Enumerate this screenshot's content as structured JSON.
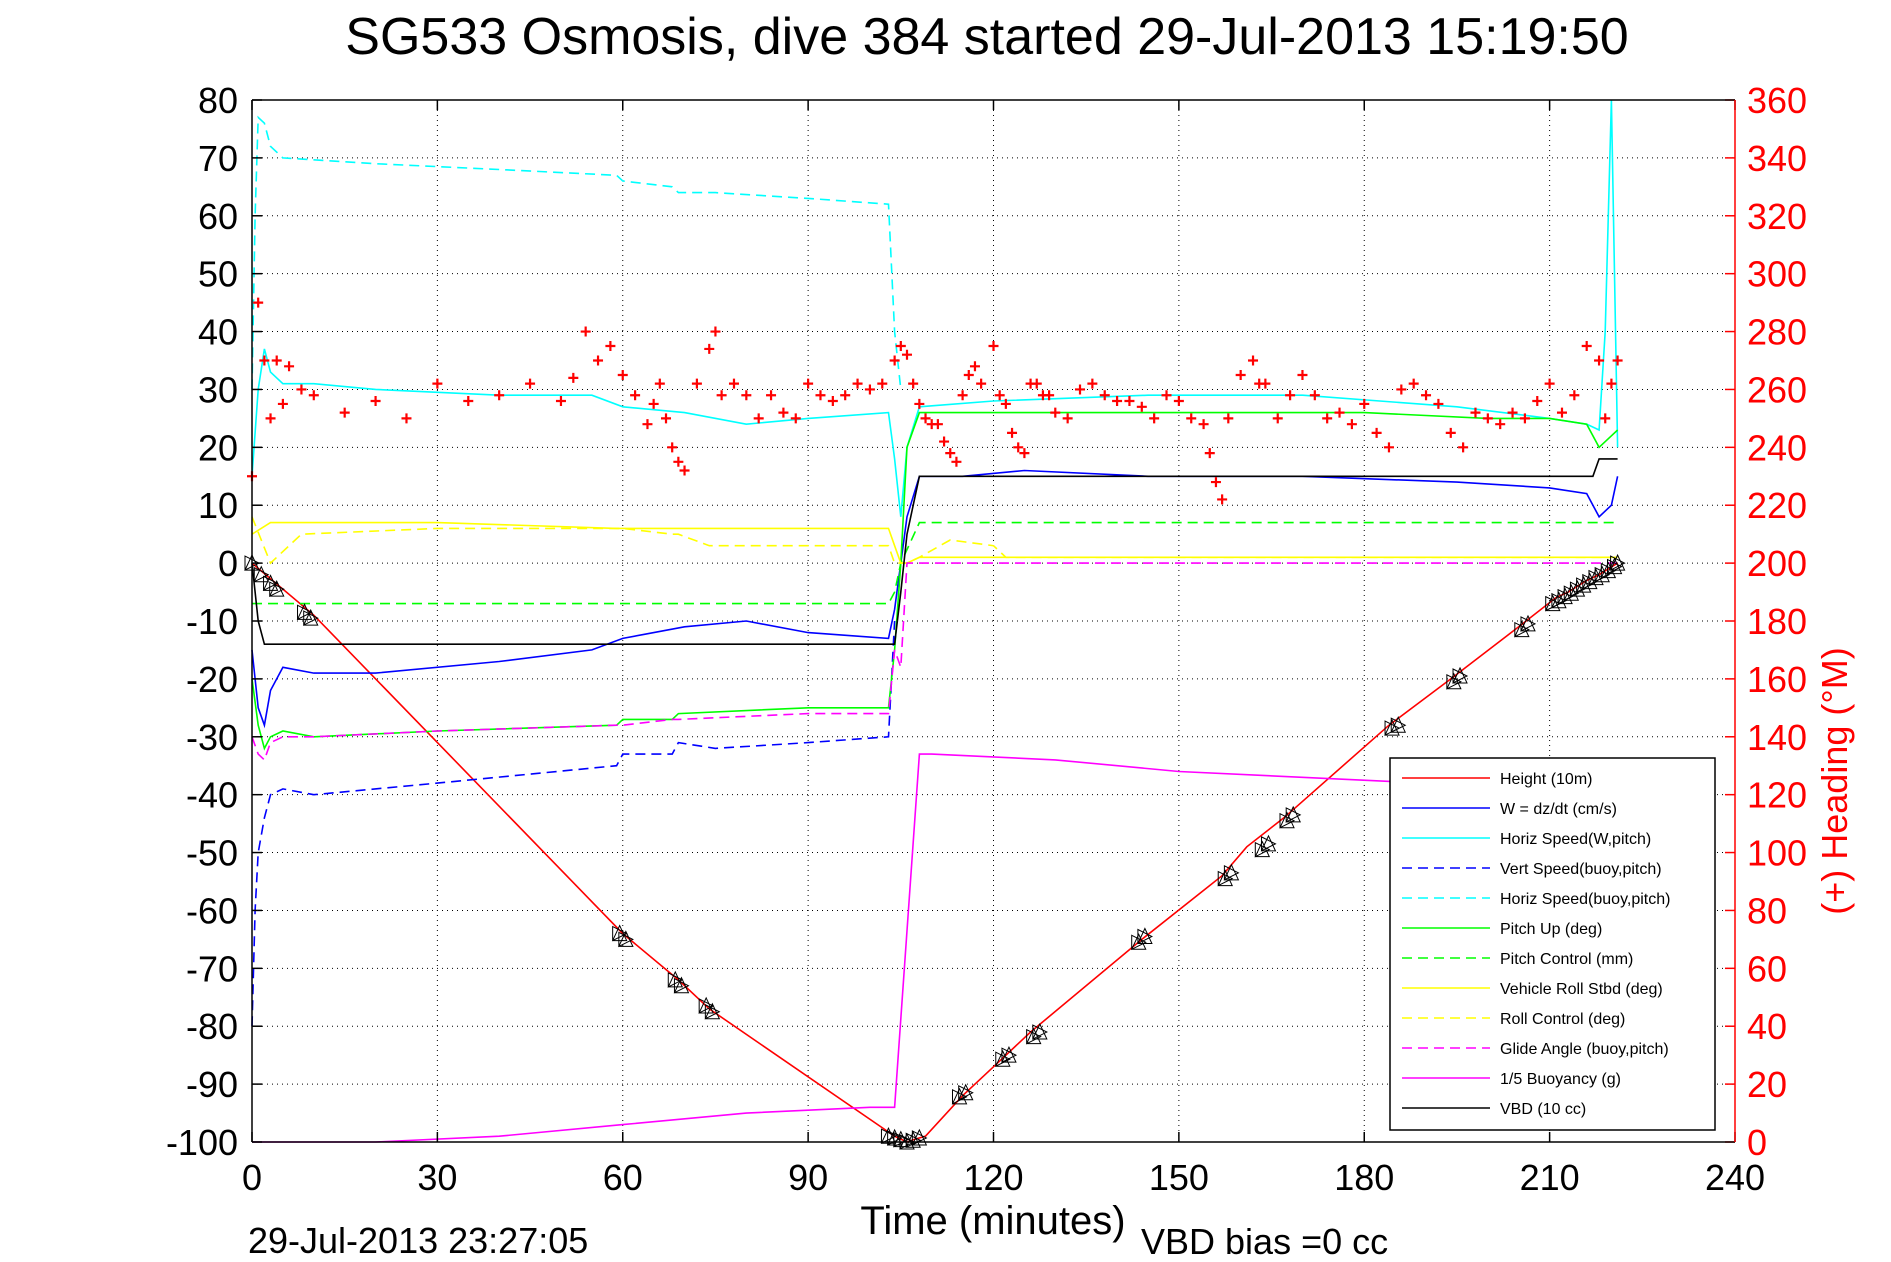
{
  "chart_data": {
    "type": "line",
    "title": "SG533 Osmosis, dive 384 started 29-Jul-2013 15:19:50",
    "xlabel": "Time (minutes)",
    "ylabel": "",
    "y2label": "(+) Heading (°M)",
    "xlim": [
      0,
      240
    ],
    "ylim": [
      -100,
      80
    ],
    "y2lim": [
      0,
      360
    ],
    "xticks": [
      "0",
      "30",
      "60",
      "90",
      "120",
      "150",
      "180",
      "210",
      "240"
    ],
    "yticks": [
      "80",
      "70",
      "60",
      "50",
      "40",
      "30",
      "20",
      "10",
      "0",
      "-10",
      "-20",
      "-30",
      "-40",
      "-50",
      "-60",
      "-70",
      "-80",
      "-90",
      "-100"
    ],
    "y2ticks": [
      "360",
      "340",
      "320",
      "300",
      "280",
      "260",
      "240",
      "220",
      "200",
      "180",
      "160",
      "140",
      "120",
      "100",
      "80",
      "60",
      "40",
      "20",
      "0"
    ],
    "grid": true,
    "legend_position": "bottom-right",
    "footer_left": "29-Jul-2013 23:27:05",
    "footer_right": "VBD bias =0 cc",
    "colors": {
      "red": "#ff0000",
      "blue": "#0000ff",
      "cyan": "#00ffff",
      "green": "#00ff00",
      "yellow": "#ffff00",
      "magenta": "#ff00ff",
      "black": "#000000"
    },
    "series": [
      {
        "name": "Height (10m)",
        "color": "#ff0000",
        "style": "solid",
        "x": [
          0,
          10,
          60,
          69,
          74,
          104,
          105,
          106,
          107,
          109,
          115,
          122,
          126,
          144,
          157,
          161,
          167,
          184,
          194,
          205,
          211,
          213,
          216,
          218,
          221
        ],
        "y": [
          0,
          -9,
          -64,
          -72,
          -77,
          -99,
          -99.5,
          -100,
          -99.6,
          -99,
          -92,
          -85,
          -81,
          -65,
          -54,
          -49,
          -44,
          -28,
          -20,
          -11,
          -6,
          -5,
          -3,
          -2,
          0
        ]
      },
      {
        "name": "W = dz/dt (cm/s)",
        "color": "#0000ff",
        "style": "solid",
        "x": [
          0,
          1,
          2,
          3,
          5,
          10,
          20,
          40,
          55,
          60,
          70,
          80,
          90,
          103,
          104,
          105,
          106,
          108,
          115,
          125,
          145,
          170,
          195,
          210,
          216,
          218,
          220,
          221
        ],
        "y": [
          -15,
          -25,
          -28,
          -22,
          -18,
          -19,
          -19,
          -17,
          -15,
          -13,
          -11,
          -10,
          -12,
          -13,
          -8,
          0,
          8,
          15,
          15,
          16,
          15,
          15,
          14,
          13,
          12,
          8,
          10,
          15
        ]
      },
      {
        "name": "Horiz Speed(W,pitch)",
        "color": "#00ffff",
        "style": "solid",
        "x": [
          0,
          1,
          2,
          3,
          5,
          10,
          20,
          40,
          55,
          60,
          70,
          80,
          90,
          103,
          104,
          105,
          106,
          108,
          120,
          145,
          170,
          195,
          210,
          216,
          218,
          219,
          220,
          221
        ],
        "y": [
          15,
          30,
          37,
          33,
          31,
          31,
          30,
          29,
          29,
          27,
          26,
          24,
          25,
          26,
          18,
          8,
          20,
          27,
          28,
          29,
          29,
          27,
          25,
          24,
          23,
          40,
          80,
          20
        ]
      },
      {
        "name": "Vert Speed(buoy,pitch)",
        "color": "#0000ff",
        "style": "dashed",
        "x": [
          0,
          0.5,
          1,
          2,
          3,
          5,
          10,
          30,
          59,
          60,
          68,
          69,
          75,
          90,
          103,
          104
        ],
        "y": [
          -80,
          -60,
          -50,
          -44,
          -40,
          -39,
          -40,
          -38,
          -35,
          -33,
          -33,
          -31,
          -32,
          -31,
          -30,
          -10
        ]
      },
      {
        "name": "Horiz Speed(buoy,pitch)",
        "color": "#00ffff",
        "style": "dashed",
        "x": [
          0,
          0.5,
          1,
          2,
          3,
          5,
          20,
          40,
          59,
          60,
          68,
          69,
          75,
          90,
          103,
          104,
          105
        ],
        "y": [
          30,
          60,
          77,
          76,
          72,
          70,
          69,
          68,
          67,
          66,
          65,
          64,
          64,
          63,
          62,
          40,
          30
        ]
      },
      {
        "name": "Pitch Up (deg)",
        "color": "#00ff00",
        "style": "solid",
        "x": [
          0,
          1,
          2,
          3,
          5,
          10,
          30,
          59,
          60,
          68,
          69,
          90,
          103,
          104,
          105,
          106,
          108,
          125,
          150,
          180,
          200,
          210,
          216,
          218,
          220,
          221
        ],
        "y": [
          -20,
          -28,
          -32,
          -30,
          -29,
          -30,
          -29,
          -28,
          -27,
          -27,
          -26,
          -25,
          -25,
          -15,
          0,
          20,
          26,
          26,
          26,
          26,
          25,
          25,
          24,
          20,
          22,
          23
        ]
      },
      {
        "name": "Pitch Control (mm)",
        "color": "#00ff00",
        "style": "dashed",
        "x": [
          0,
          3,
          59,
          60,
          103,
          104,
          105,
          108,
          122,
          123,
          221
        ],
        "y": [
          -7,
          -7,
          -7,
          -7,
          -7,
          -5,
          0,
          7,
          7,
          7,
          7
        ]
      },
      {
        "name": "Vehicle Roll Stbd (deg)",
        "color": "#ffff00",
        "style": "solid",
        "x": [
          0,
          3,
          5,
          10,
          30,
          59,
          60,
          68,
          69,
          90,
          103,
          104,
          105,
          106,
          108,
          120,
          150,
          180,
          210,
          220
        ],
        "y": [
          5,
          7,
          7,
          7,
          7,
          6,
          6,
          6,
          6,
          6,
          6,
          3,
          0,
          0,
          1,
          1,
          1,
          1,
          1,
          1
        ]
      },
      {
        "name": "Roll Control (deg)",
        "color": "#ffff00",
        "style": "dashed",
        "x": [
          0,
          3,
          8,
          30,
          59,
          60,
          68,
          69,
          74,
          75,
          103,
          104,
          106,
          108,
          113,
          120,
          122,
          150,
          180,
          210,
          221
        ],
        "y": [
          8,
          0,
          5,
          6,
          6,
          6,
          5,
          5,
          3,
          3,
          3,
          0,
          0,
          1,
          4,
          3,
          1,
          1,
          1,
          1,
          1
        ]
      },
      {
        "name": "Glide Angle (buoy,pitch)",
        "color": "#ff00ff",
        "style": "dashed",
        "x": [
          0,
          1,
          2,
          3,
          5,
          10,
          30,
          59,
          60,
          68,
          69,
          90,
          103,
          104,
          105,
          106,
          108,
          221
        ],
        "y": [
          -30,
          -33,
          -34,
          -31,
          -30,
          -30,
          -29,
          -28,
          -28,
          -27,
          -27,
          -26,
          -26,
          -15,
          -18,
          0,
          0,
          0
        ]
      },
      {
        "name": "1/5 Buoyancy (g)",
        "color": "#ff00ff",
        "style": "solid",
        "x": [
          0,
          1,
          2,
          3,
          5,
          20,
          40,
          60,
          80,
          100,
          104,
          108,
          110,
          130,
          150,
          190,
          210,
          220
        ],
        "y": [
          -100,
          -100,
          -100,
          -100,
          -100,
          -100,
          -99,
          -97,
          -95,
          -94,
          -94,
          -33,
          -33,
          -34,
          -36,
          -38,
          -38,
          -38
        ]
      },
      {
        "name": "VBD (10 cc)",
        "color": "#000000",
        "style": "solid",
        "x": [
          0,
          1,
          2,
          104,
          105,
          106,
          108,
          150,
          217,
          218,
          221
        ],
        "y": [
          0,
          -10,
          -14,
          -14,
          -5,
          5,
          15,
          15,
          15,
          18,
          18
        ]
      }
    ],
    "heading": {
      "name": "(+) Heading (°M)",
      "color": "#ff0000",
      "marker": "+",
      "x": [
        0,
        1,
        2,
        3,
        4,
        5,
        6,
        8,
        10,
        15,
        20,
        25,
        30,
        35,
        40,
        45,
        50,
        52,
        54,
        56,
        58,
        60,
        62,
        64,
        65,
        66,
        67,
        68,
        69,
        70,
        72,
        74,
        75,
        76,
        78,
        80,
        82,
        84,
        86,
        88,
        90,
        92,
        94,
        96,
        98,
        100,
        102,
        104,
        105,
        106,
        107,
        108,
        109,
        110,
        111,
        112,
        113,
        114,
        115,
        116,
        117,
        118,
        120,
        121,
        122,
        123,
        124,
        125,
        126,
        127,
        128,
        129,
        130,
        132,
        134,
        136,
        138,
        140,
        142,
        144,
        146,
        148,
        150,
        152,
        154,
        155,
        156,
        157,
        158,
        160,
        162,
        163,
        164,
        166,
        168,
        170,
        172,
        174,
        176,
        178,
        180,
        182,
        184,
        186,
        188,
        190,
        192,
        194,
        196,
        198,
        200,
        202,
        204,
        206,
        208,
        210,
        212,
        214,
        216,
        218,
        219,
        220,
        221
      ],
      "y": [
        230,
        290,
        270,
        250,
        270,
        255,
        268,
        260,
        258,
        252,
        256,
        250,
        262,
        256,
        258,
        262,
        256,
        264,
        280,
        270,
        275,
        265,
        258,
        248,
        255,
        262,
        250,
        240,
        235,
        232,
        262,
        274,
        280,
        258,
        262,
        258,
        250,
        258,
        252,
        250,
        262,
        258,
        256,
        258,
        262,
        260,
        262,
        270,
        275,
        272,
        262,
        255,
        250,
        248,
        248,
        242,
        238,
        235,
        258,
        265,
        268,
        262,
        275,
        258,
        255,
        245,
        240,
        238,
        262,
        262,
        258,
        258,
        252,
        250,
        260,
        262,
        258,
        256,
        256,
        254,
        250,
        258,
        256,
        250,
        248,
        238,
        228,
        222,
        250,
        265,
        270,
        262,
        262,
        250,
        258,
        265,
        258,
        250,
        252,
        248,
        255,
        245,
        240,
        260,
        262,
        258,
        255,
        245,
        240,
        252,
        250,
        248,
        252,
        250,
        256,
        262,
        252,
        258,
        275,
        270,
        250,
        262,
        270
      ]
    },
    "markers": {
      "symbol": "triangles",
      "color": "#000000",
      "x": [
        0,
        1.5,
        3,
        4,
        8.5,
        9.5,
        59.5,
        60.5,
        68.5,
        69.5,
        73.5,
        74.5,
        103,
        104,
        105,
        106,
        107,
        108,
        114.5,
        115.5,
        121.5,
        122.5,
        126.5,
        127.5,
        143.5,
        144.5,
        157.5,
        158.5,
        163.5,
        164.5,
        167.5,
        168.5,
        184.5,
        185.5,
        194.5,
        195.5,
        205.5,
        206.5,
        210.5,
        211.5,
        212.5,
        213.5,
        214.5,
        215.5,
        216.5,
        217.5,
        218.5,
        219.5,
        220.5,
        221
      ],
      "y": [
        0,
        -2,
        -3.5,
        -4.5,
        -8.5,
        -9.5,
        -64,
        -65,
        -72,
        -73,
        -76.5,
        -77.5,
        -99,
        -99.3,
        -99.6,
        -100,
        -99.7,
        -99.3,
        -92.2,
        -91.5,
        -85.7,
        -85,
        -81.8,
        -81,
        -65.5,
        -64.5,
        -54.5,
        -53.5,
        -49.5,
        -48.5,
        -44.5,
        -43.5,
        -28.5,
        -28,
        -20.5,
        -19.5,
        -11.5,
        -10.5,
        -7,
        -6.5,
        -5.8,
        -5.2,
        -4.5,
        -3.8,
        -3.2,
        -2.5,
        -2,
        -1.3,
        -0.6,
        0
      ]
    }
  }
}
